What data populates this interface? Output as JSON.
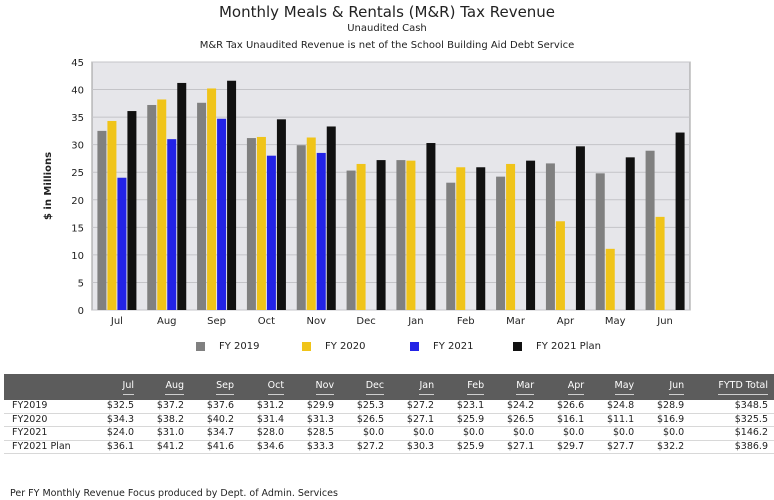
{
  "title": "Monthly Meals & Rentals (M&R) Tax Revenue",
  "subtitle1": "Unaudited Cash",
  "subtitle2": "M&R Tax Unaudited Revenue is net of the School Building Aid Debt Service",
  "footer": "Per FY Monthly Revenue Focus produced by Dept. of Admin. Services",
  "chart_data": {
    "type": "bar",
    "title": "Monthly Meals & Rentals (M&R) Tax Revenue",
    "subtitle": "Unaudited Cash",
    "ylabel": "$ in Millions",
    "xlabel": "",
    "ylim": [
      0,
      45
    ],
    "yticks": [
      0,
      5,
      10,
      15,
      20,
      25,
      30,
      35,
      40,
      45
    ],
    "grid": true,
    "legend_position": "bottom",
    "categories": [
      "Jul",
      "Aug",
      "Sep",
      "Oct",
      "Nov",
      "Dec",
      "Jan",
      "Feb",
      "Mar",
      "Apr",
      "May",
      "Jun"
    ],
    "series": [
      {
        "name": "FY 2019",
        "color": "#808080",
        "values": [
          32.5,
          37.2,
          37.6,
          31.2,
          29.9,
          25.3,
          27.2,
          23.1,
          24.2,
          26.6,
          24.8,
          28.9
        ]
      },
      {
        "name": "FY 2020",
        "color": "#f0c419",
        "values": [
          34.3,
          38.2,
          40.2,
          31.4,
          31.3,
          26.5,
          27.1,
          25.9,
          26.5,
          16.1,
          11.1,
          16.9
        ]
      },
      {
        "name": "FY 2021",
        "color": "#2323e6",
        "values": [
          24.0,
          31.0,
          34.7,
          28.0,
          28.5,
          0,
          0,
          0,
          0,
          0,
          0,
          0
        ]
      },
      {
        "name": "FY 2021 Plan",
        "color": "#111111",
        "values": [
          36.1,
          41.2,
          41.6,
          34.6,
          33.3,
          27.2,
          30.3,
          25.9,
          27.1,
          29.7,
          27.7,
          32.2
        ]
      }
    ]
  },
  "table": {
    "headers": [
      "Jul",
      "Aug",
      "Sep",
      "Oct",
      "Nov",
      "Dec",
      "Jan",
      "Feb",
      "Mar",
      "Apr",
      "May",
      "Jun",
      "FYTD Total"
    ],
    "rows": [
      {
        "label": "FY2019",
        "cells": [
          "$32.5",
          "$37.2",
          "$37.6",
          "$31.2",
          "$29.9",
          "$25.3",
          "$27.2",
          "$23.1",
          "$24.2",
          "$26.6",
          "$24.8",
          "$28.9",
          "$348.5"
        ]
      },
      {
        "label": "FY2020",
        "cells": [
          "$34.3",
          "$38.2",
          "$40.2",
          "$31.4",
          "$31.3",
          "$26.5",
          "$27.1",
          "$25.9",
          "$26.5",
          "$16.1",
          "$11.1",
          "$16.9",
          "$325.5"
        ]
      },
      {
        "label": "FY2021",
        "cells": [
          "$24.0",
          "$31.0",
          "$34.7",
          "$28.0",
          "$28.5",
          "$0.0",
          "$0.0",
          "$0.0",
          "$0.0",
          "$0.0",
          "$0.0",
          "$0.0",
          "$146.2"
        ]
      },
      {
        "label": "FY2021 Plan",
        "cells": [
          "$36.1",
          "$41.2",
          "$41.6",
          "$34.6",
          "$33.3",
          "$27.2",
          "$30.3",
          "$25.9",
          "$27.1",
          "$29.7",
          "$27.7",
          "$32.2",
          "$386.9"
        ]
      }
    ]
  }
}
